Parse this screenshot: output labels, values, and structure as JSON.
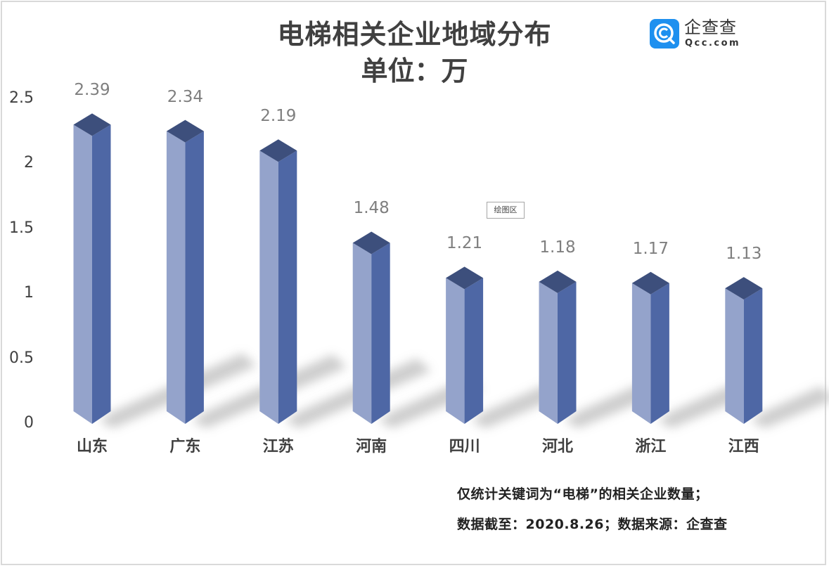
{
  "chart_data": {
    "type": "bar",
    "title": "电梯相关企业地域分布",
    "subtitle": "单位：万",
    "xlabel": "",
    "ylabel": "",
    "categories": [
      "山东",
      "广东",
      "江苏",
      "河南",
      "四川",
      "河北",
      "浙江",
      "江西"
    ],
    "values": [
      2.39,
      2.34,
      2.19,
      1.48,
      1.21,
      1.18,
      1.17,
      1.13
    ],
    "value_labels": [
      "2.39",
      "2.34",
      "2.19",
      "1.48",
      "1.21",
      "1.18",
      "1.17",
      "1.13"
    ],
    "yticks": [
      "0",
      "0.5",
      "1",
      "1.5",
      "2",
      "2.5"
    ],
    "ylim": [
      0,
      2.5
    ],
    "grid": false,
    "legend": "none",
    "style": "3d-column",
    "colors": {
      "face_light": "#94a3cb",
      "face_dark": "#4e67a5",
      "top": "#3d4f7c",
      "label": "#7f7f7f"
    },
    "annotations": [
      "仅统计关键词为“电梯”的相关企业数量；",
      "数据截至：2020.8.26；数据来源：企查查"
    ]
  },
  "header": {
    "title": "电梯相关企业地域分布",
    "unit": "单位：万"
  },
  "logo": {
    "name": "企查查",
    "url": "Qcc.com",
    "color": "#1e90ef"
  },
  "plot_area_tag": "绘图区",
  "footnotes": {
    "line1": "仅统计关键词为“电梯”的相关企业数量；",
    "line2": "数据截至：2020.8.26；数据来源：企查查"
  }
}
